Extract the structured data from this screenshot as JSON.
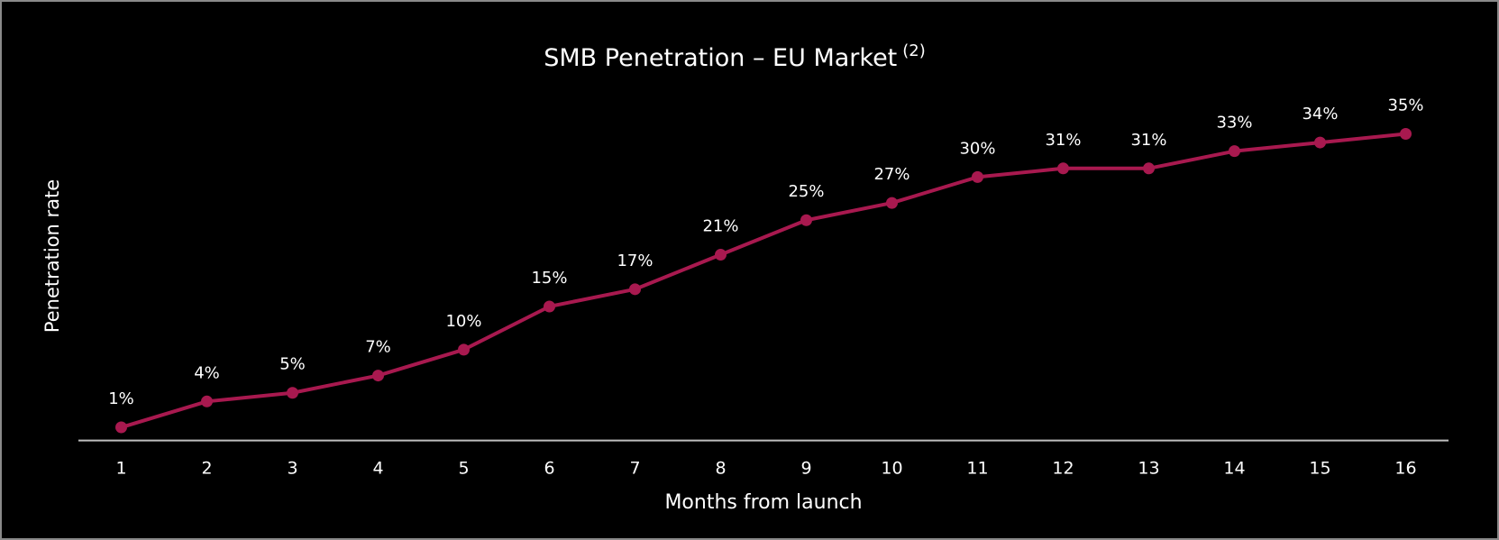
{
  "chart_data": {
    "type": "line",
    "title": "SMB Penetration – EU Market",
    "title_note": "(2)",
    "x_label": "Months from launch",
    "y_label": "Penetration rate",
    "categories": [
      "1",
      "2",
      "3",
      "4",
      "5",
      "6",
      "7",
      "8",
      "9",
      "10",
      "11",
      "12",
      "13",
      "14",
      "15",
      "16"
    ],
    "values": [
      1,
      4,
      5,
      7,
      10,
      15,
      17,
      21,
      25,
      27,
      30,
      31,
      31,
      33,
      34,
      35
    ],
    "value_labels": [
      "1%",
      "4%",
      "5%",
      "7%",
      "10%",
      "15%",
      "17%",
      "21%",
      "25%",
      "27%",
      "30%",
      "31%",
      "31%",
      "33%",
      "34%",
      "35%"
    ],
    "color": "#a8194f",
    "ylim": [
      0,
      35
    ]
  }
}
